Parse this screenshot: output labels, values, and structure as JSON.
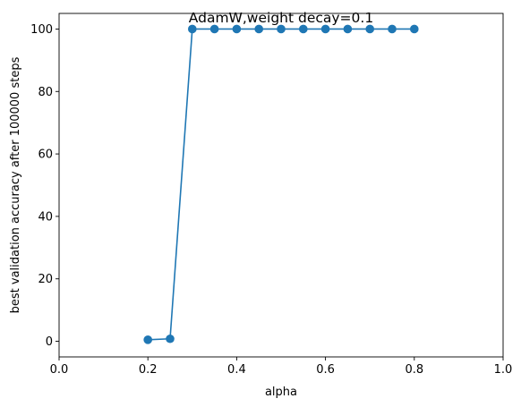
{
  "chart_data": {
    "type": "line",
    "title": "AdamW,weight decay=0.1",
    "xlabel": "alpha",
    "ylabel": "best validation accuracy after 100000 steps",
    "xlim": [
      0.0,
      1.0
    ],
    "ylim": [
      -5,
      105
    ],
    "xticks": [
      0.0,
      0.2,
      0.4,
      0.6,
      0.8,
      1.0
    ],
    "xtick_labels": [
      "0.0",
      "0.2",
      "0.4",
      "0.6",
      "0.8",
      "1.0"
    ],
    "yticks": [
      0,
      20,
      40,
      60,
      80,
      100
    ],
    "ytick_labels": [
      "0",
      "20",
      "40",
      "60",
      "80",
      "100"
    ],
    "grid": false,
    "series": [
      {
        "color": "#1f77b4",
        "marker": "circle",
        "x": [
          0.2,
          0.25,
          0.3,
          0.35,
          0.4,
          0.45,
          0.5,
          0.55,
          0.6,
          0.65,
          0.7,
          0.75,
          0.8
        ],
        "y": [
          0.5,
          0.8,
          100,
          100,
          100,
          100,
          100,
          100,
          100,
          100,
          100,
          100,
          100
        ]
      }
    ]
  }
}
